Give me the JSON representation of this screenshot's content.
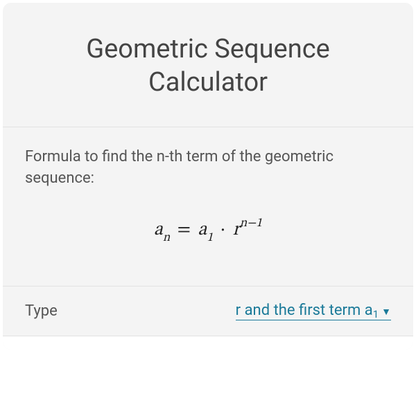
{
  "card": {
    "title": "Geometric Sequence Calculator",
    "description": "Formula to find the n-th term of the geometric sequence:",
    "formula": {
      "lhs_base": "a",
      "lhs_sub": "n",
      "eq": "=",
      "rhs1_base": "a",
      "rhs1_sub": "1",
      "dot": "·",
      "rhs2_base": "r",
      "rhs2_sup_left": "n",
      "rhs2_sup_minus": "−",
      "rhs2_sup_right": "1"
    },
    "row_type": {
      "label": "Type",
      "selected_prefix": "r and the first term a",
      "selected_sub": "1",
      "arrow": "▼"
    }
  },
  "styling": {
    "background_color": "#f4f4f4",
    "text_color": "#555555",
    "title_color": "#444444",
    "link_color": "#1b7a99",
    "border_color": "#e2e2e2",
    "title_fontsize": 38,
    "body_fontsize": 22,
    "formula_fontsize": 27
  }
}
